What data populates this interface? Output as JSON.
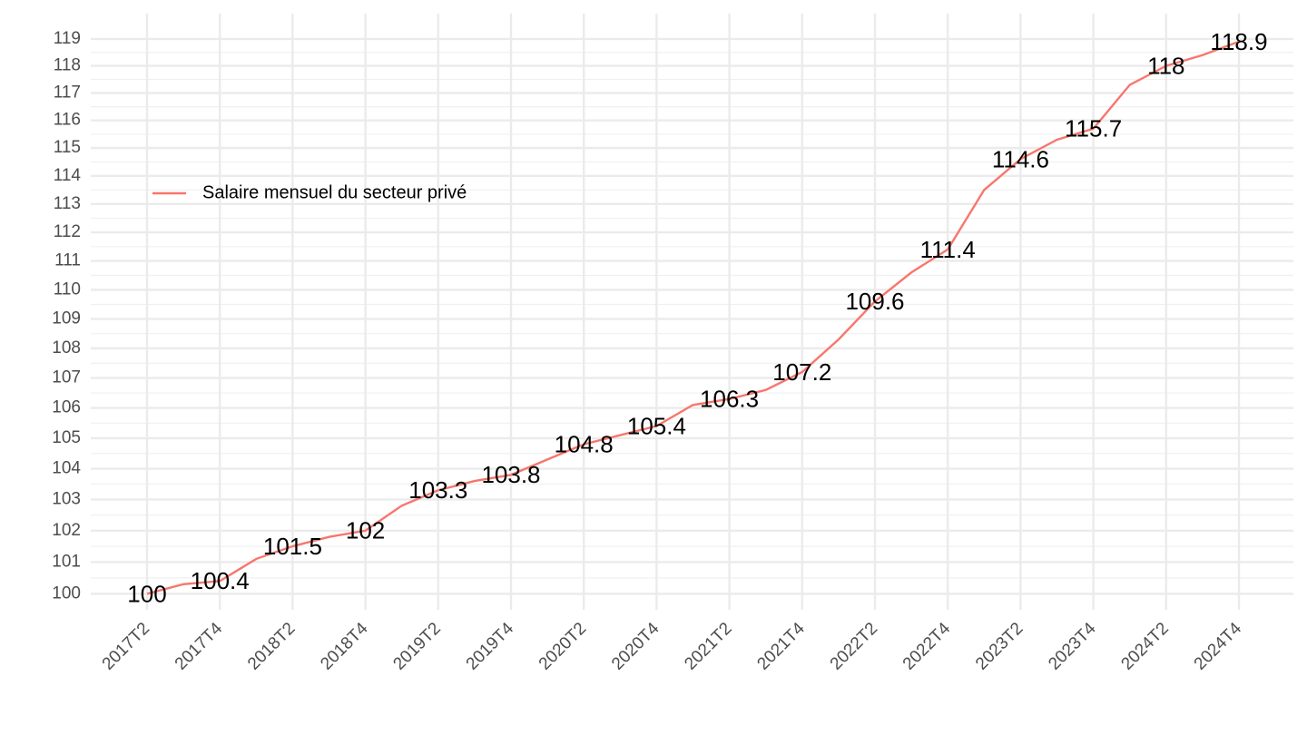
{
  "chart_data": {
    "type": "line",
    "categories": [
      "2017T2",
      null,
      "2017T4",
      null,
      "2018T2",
      null,
      "2018T4",
      null,
      "2019T2",
      null,
      "2019T4",
      null,
      "2020T2",
      null,
      "2020T4",
      null,
      "2021T2",
      null,
      "2021T4",
      null,
      "2022T2",
      null,
      "2022T4",
      null,
      "2023T2",
      null,
      "2023T4",
      null,
      "2024T2",
      null,
      "2024T4"
    ],
    "series": [
      {
        "name": "Salaire mensuel du secteur privé",
        "color": "#F8766D",
        "values": [
          100,
          100.3,
          100.4,
          101.1,
          101.5,
          101.8,
          102,
          102.8,
          103.3,
          103.6,
          103.8,
          104.3,
          104.8,
          105.1,
          105.4,
          106.1,
          106.3,
          106.6,
          107.2,
          108.3,
          109.6,
          110.6,
          111.4,
          113.5,
          114.6,
          115.3,
          115.7,
          117.3,
          118,
          118.4,
          118.9
        ]
      }
    ],
    "ylim": [
      99.5,
      119.95
    ],
    "yticks": [
      100,
      101,
      102,
      103,
      104,
      105,
      106,
      107,
      108,
      109,
      110,
      111,
      112,
      113,
      114,
      115,
      116,
      117,
      118,
      119
    ],
    "log_y": true,
    "grid": true,
    "legend_position": "left"
  }
}
